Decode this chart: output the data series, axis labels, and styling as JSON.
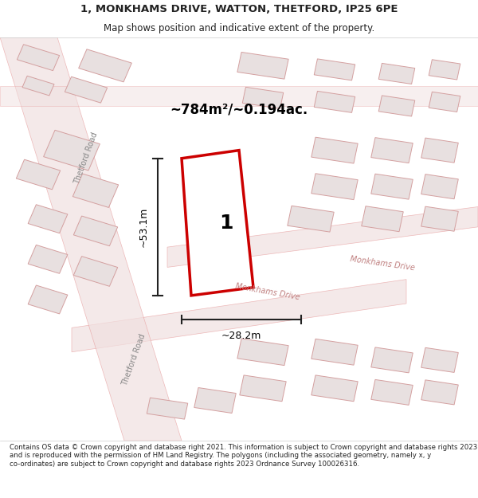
{
  "title_line1": "1, MONKHAMS DRIVE, WATTON, THETFORD, IP25 6PE",
  "title_line2": "Map shows position and indicative extent of the property.",
  "area_text": "~784m²/~0.194ac.",
  "dim_vertical": "~53.1m",
  "dim_horizontal": "~28.2m",
  "plot_number": "1",
  "street_label1": "Monkhams Drive",
  "street_label2": "Monkhams Drive",
  "road_label1": "Thetford Road",
  "road_label2": "Thetford Road",
  "footer_text": "Contains OS data © Crown copyright and database right 2021. This information is subject to Crown copyright and database rights 2023 and is reproduced with the permission of HM Land Registry. The polygons (including the associated geometry, namely x, y co-ordinates) are subject to Crown copyright and database rights 2023 Ordnance Survey 100026316.",
  "bg_color": "#f5f0f0",
  "map_bg": "#f9f5f5",
  "building_fill": "#e8e0e0",
  "building_edge": "#d4a0a0",
  "road_color": "#e8a0a0",
  "plot_edge": "#cc0000",
  "plot_fill": "white",
  "dim_line_color": "#222222",
  "text_color": "#222222",
  "title_bg": "white",
  "footer_bg": "white"
}
